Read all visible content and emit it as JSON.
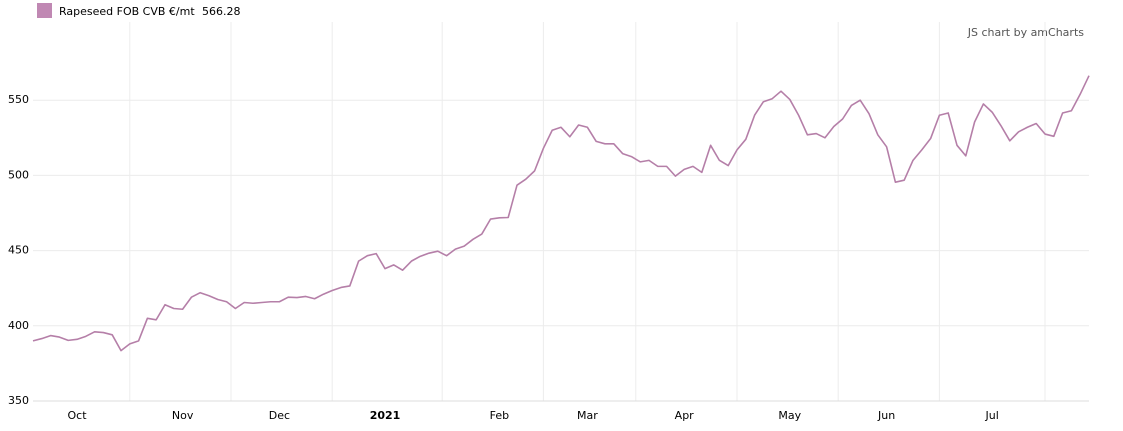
{
  "chart_data": {
    "type": "line",
    "credit": "JS chart by amCharts",
    "categories": [
      null,
      null,
      null,
      null,
      null,
      "Oct",
      null,
      null,
      null,
      null,
      null,
      null,
      null,
      null,
      null,
      null,
      null,
      "Nov",
      null,
      null,
      null,
      null,
      null,
      null,
      null,
      null,
      null,
      null,
      "Dec",
      null,
      null,
      null,
      null,
      null,
      null,
      null,
      null,
      null,
      null,
      null,
      "2021",
      null,
      null,
      null,
      null,
      null,
      null,
      null,
      null,
      null,
      null,
      null,
      null,
      "Feb",
      null,
      null,
      null,
      null,
      null,
      null,
      null,
      null,
      null,
      "Mar",
      null,
      null,
      null,
      null,
      null,
      null,
      null,
      null,
      null,
      null,
      "Apr",
      null,
      null,
      null,
      null,
      null,
      null,
      null,
      null,
      null,
      null,
      null,
      "May",
      null,
      null,
      null,
      null,
      null,
      null,
      null,
      null,
      null,
      null,
      "Jun",
      null,
      null,
      null,
      null,
      null,
      null,
      null,
      null,
      null,
      null,
      null,
      "Jul",
      null,
      null,
      null,
      null,
      null,
      null,
      null,
      null,
      null,
      null,
      null
    ],
    "series": [
      {
        "name": "Rapeseed FOB CVB €/mt",
        "color": "#b57fa8",
        "values": [
          390,
          391.5,
          393.5,
          392.5,
          390.3,
          391,
          393,
          396,
          395.5,
          394,
          383.5,
          388,
          390,
          405,
          404,
          414,
          411.5,
          411,
          419,
          422,
          420,
          417.5,
          416,
          411.5,
          415.5,
          415,
          415.5,
          416,
          416,
          419,
          418.8,
          419.5,
          418,
          421,
          423.5,
          425.5,
          426.5,
          443,
          446.6,
          448,
          438,
          440.5,
          437,
          443,
          446.2,
          448.3,
          449.6,
          446.6,
          451,
          453,
          457.5,
          461,
          471,
          471.8,
          472,
          493.5,
          497.5,
          503,
          518,
          530,
          532,
          525.7,
          533.5,
          532,
          522.6,
          521,
          521,
          514.5,
          512.5,
          509,
          510,
          506,
          506,
          499.5,
          504,
          506,
          502,
          520,
          510,
          506.5,
          517,
          524,
          540,
          549,
          551,
          556,
          550.5,
          540,
          527,
          527.8,
          525,
          532.5,
          537.5,
          546.5,
          550,
          541,
          527,
          519,
          495.5,
          496.8,
          510,
          517,
          524.5,
          540,
          541.5,
          520,
          513,
          535.5,
          547.5,
          542,
          533,
          523,
          529,
          532,
          534.5,
          527.5,
          526,
          541.5,
          543,
          554,
          566.28
        ]
      }
    ],
    "ylim": [
      350,
      600
    ],
    "yticks": [
      350,
      400,
      450,
      500,
      550
    ],
    "grid": true,
    "bold_categories": [
      "2021"
    ]
  }
}
